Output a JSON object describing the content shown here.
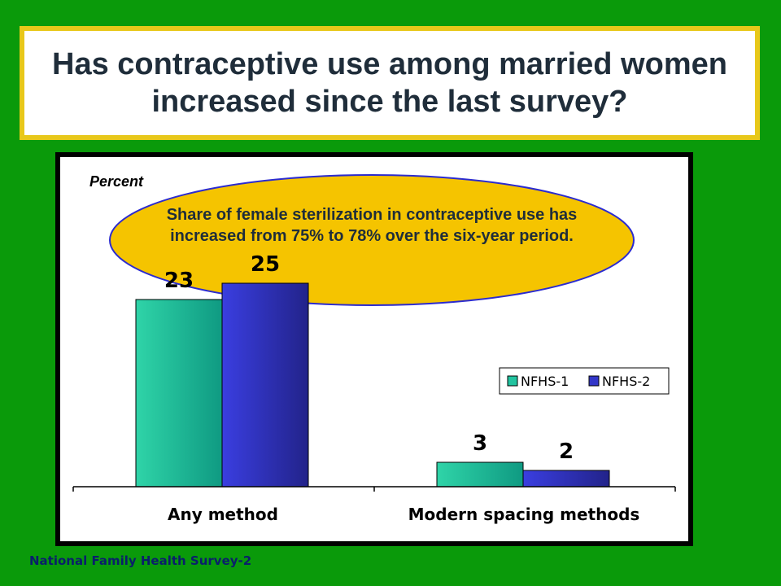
{
  "title": "Has contraceptive use among married women increased since the last survey?",
  "footer": "National Family Health Survey-2",
  "callout": "Share of female sterilization in contraceptive use has increased from 75% to 78% over the six-year period.",
  "colors": {
    "background": "#0a9a0a",
    "title_border": "#e8c81a",
    "callout_fill": "#f5c400",
    "series1": "#22c4a0",
    "series2": "#3236c8"
  },
  "chart_data": {
    "type": "bar",
    "ylabel": "Percent",
    "categories": [
      "Any method",
      "Modern spacing methods"
    ],
    "series": [
      {
        "name": "NFHS-1",
        "values": [
          23,
          3
        ]
      },
      {
        "name": "NFHS-2",
        "values": [
          25,
          2
        ]
      }
    ],
    "ylim": [
      0,
      40
    ],
    "grid": false,
    "legend": "right"
  }
}
